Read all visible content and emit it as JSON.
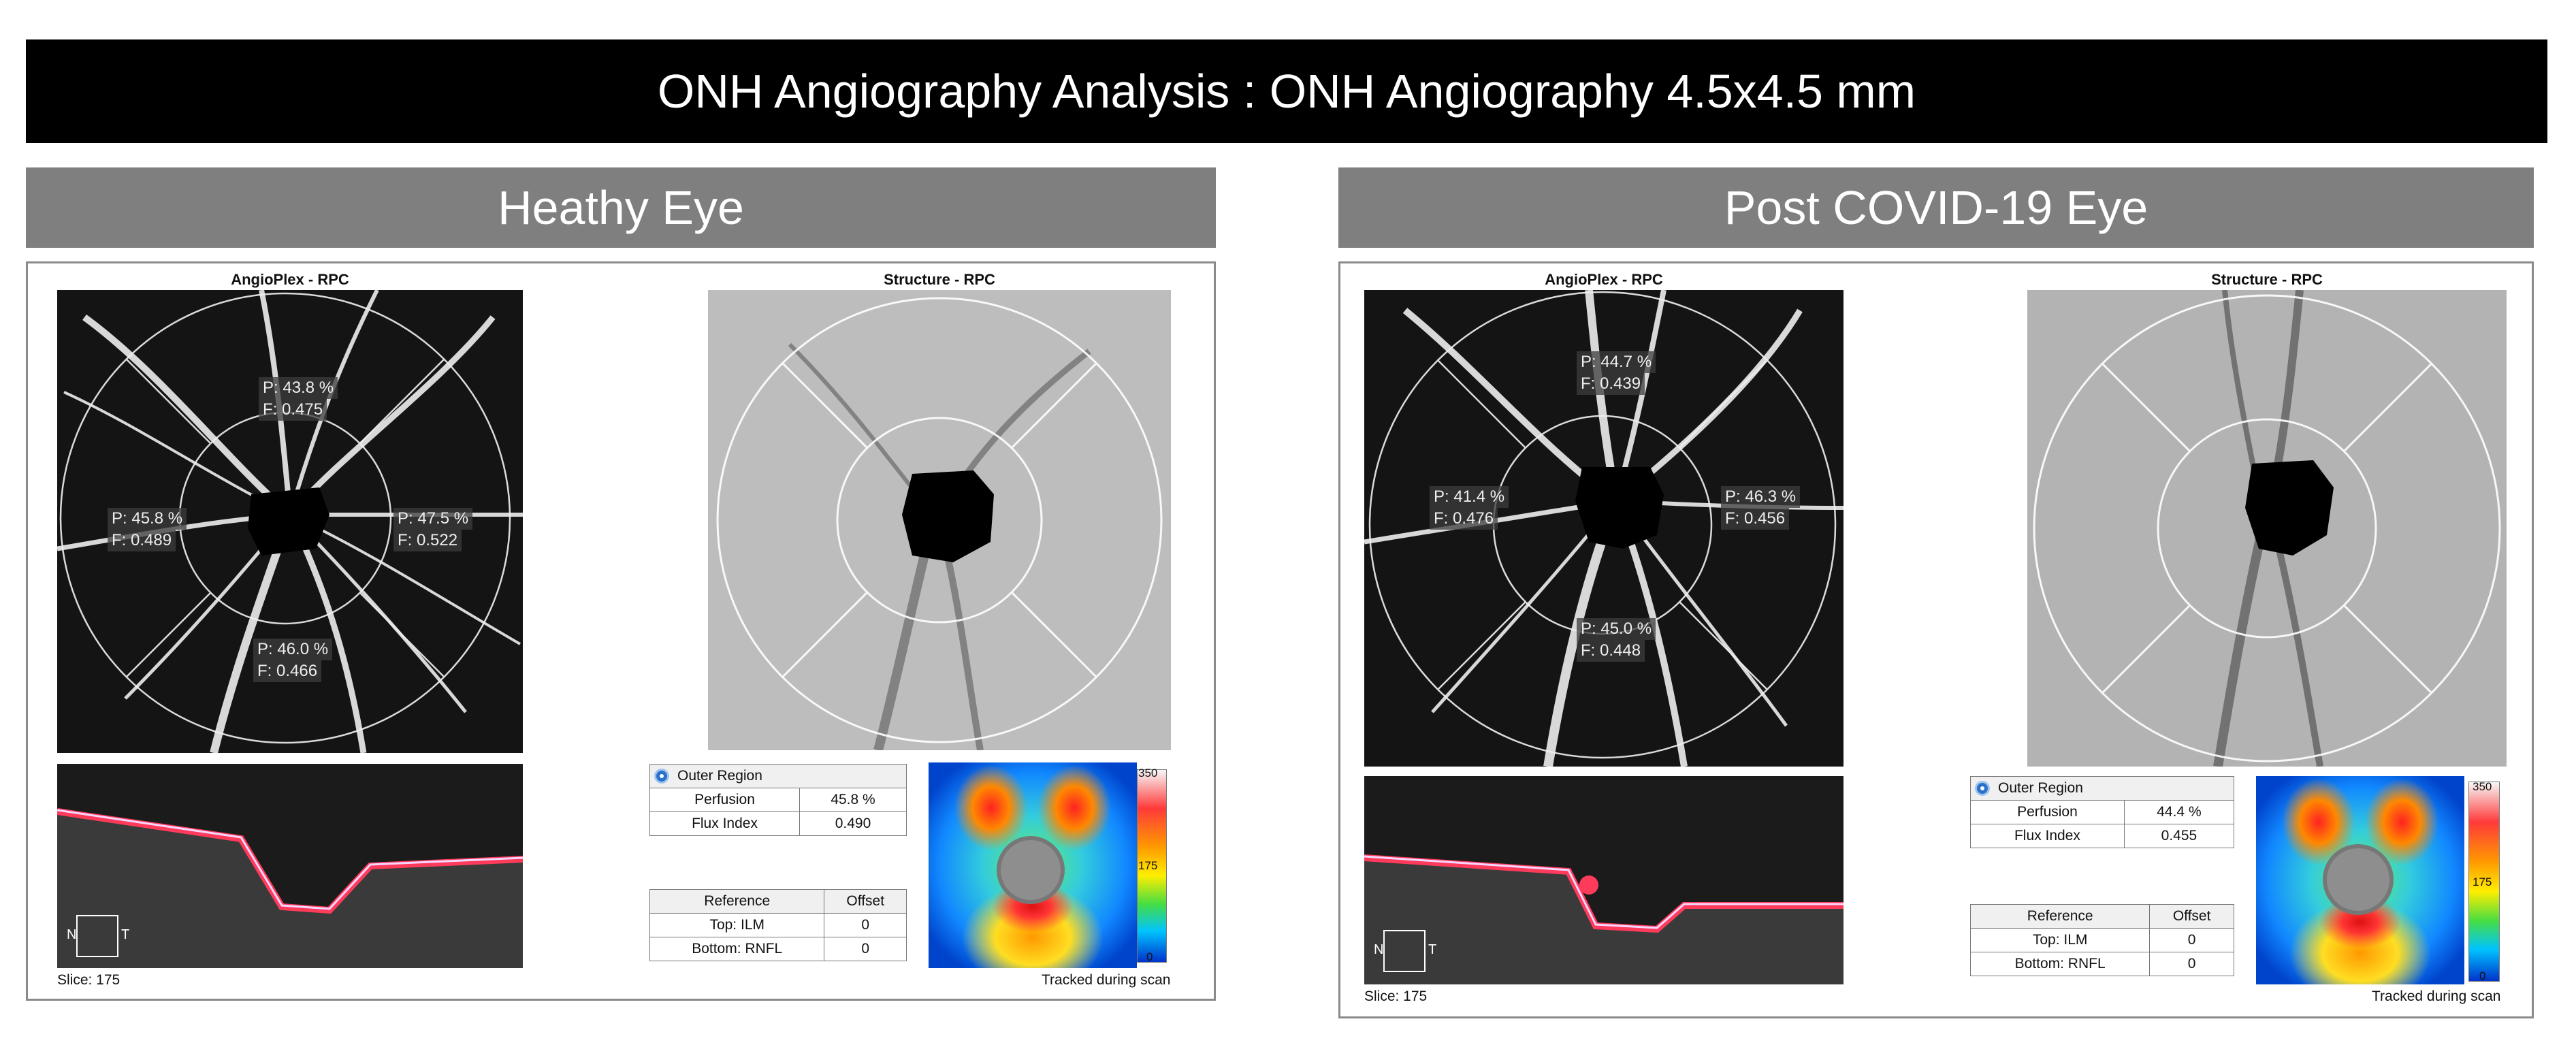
{
  "title": "ONH Angiography Analysis : ONH Angiography 4.5x4.5 mm",
  "panels": [
    {
      "heading": "Heathy Eye",
      "angio_caption": "AngioPlex - RPC",
      "structure_caption": "Structure - RPC",
      "sectors": {
        "superior": {
          "p": "P: 43.8 %",
          "f": "F: 0.475"
        },
        "nasal": {
          "p": "P: 45.8 %",
          "f": "F: 0.489"
        },
        "temporal": {
          "p": "P: 47.5 %",
          "f": "F: 0.522"
        },
        "inferior": {
          "p": "P: 46.0 %",
          "f": "F: 0.466"
        }
      },
      "region_label": "Outer Region",
      "perfusion_label": "Perfusion",
      "perfusion_value": "45.8 %",
      "flux_label": "Flux Index",
      "flux_value": "0.490",
      "ref_header": "Reference",
      "offset_header": "Offset",
      "top_label": "Top: ILM",
      "top_value": "0",
      "bottom_label": "Bottom: RNFL",
      "bottom_value": "0",
      "scale_max": "350",
      "scale_mid": "175",
      "scale_min": "0",
      "orient_n": "N",
      "orient_t": "T",
      "slice": "Slice: 175",
      "tracked": "Tracked during scan"
    },
    {
      "heading": "Post COVID-19 Eye",
      "angio_caption": "AngioPlex - RPC",
      "structure_caption": "Structure - RPC",
      "sectors": {
        "superior": {
          "p": "P: 44.7 %",
          "f": "F: 0.439"
        },
        "nasal": {
          "p": "P: 41.4 %",
          "f": "F: 0.476"
        },
        "temporal": {
          "p": "P: 46.3 %",
          "f": "F: 0.456"
        },
        "inferior": {
          "p": "P: 45.0 %",
          "f": "F: 0.448"
        }
      },
      "region_label": "Outer Region",
      "perfusion_label": "Perfusion",
      "perfusion_value": "44.4 %",
      "flux_label": "Flux Index",
      "flux_value": "0.455",
      "ref_header": "Reference",
      "offset_header": "Offset",
      "top_label": "Top: ILM",
      "top_value": "0",
      "bottom_label": "Bottom: RNFL",
      "bottom_value": "0",
      "scale_max": "350",
      "scale_mid": "175",
      "scale_min": "0",
      "orient_n": "N",
      "orient_t": "T",
      "slice": "Slice: 175",
      "tracked": "Tracked during scan"
    }
  ],
  "icons": [
    "radio-selected-icon",
    "orientation-box-icon"
  ]
}
